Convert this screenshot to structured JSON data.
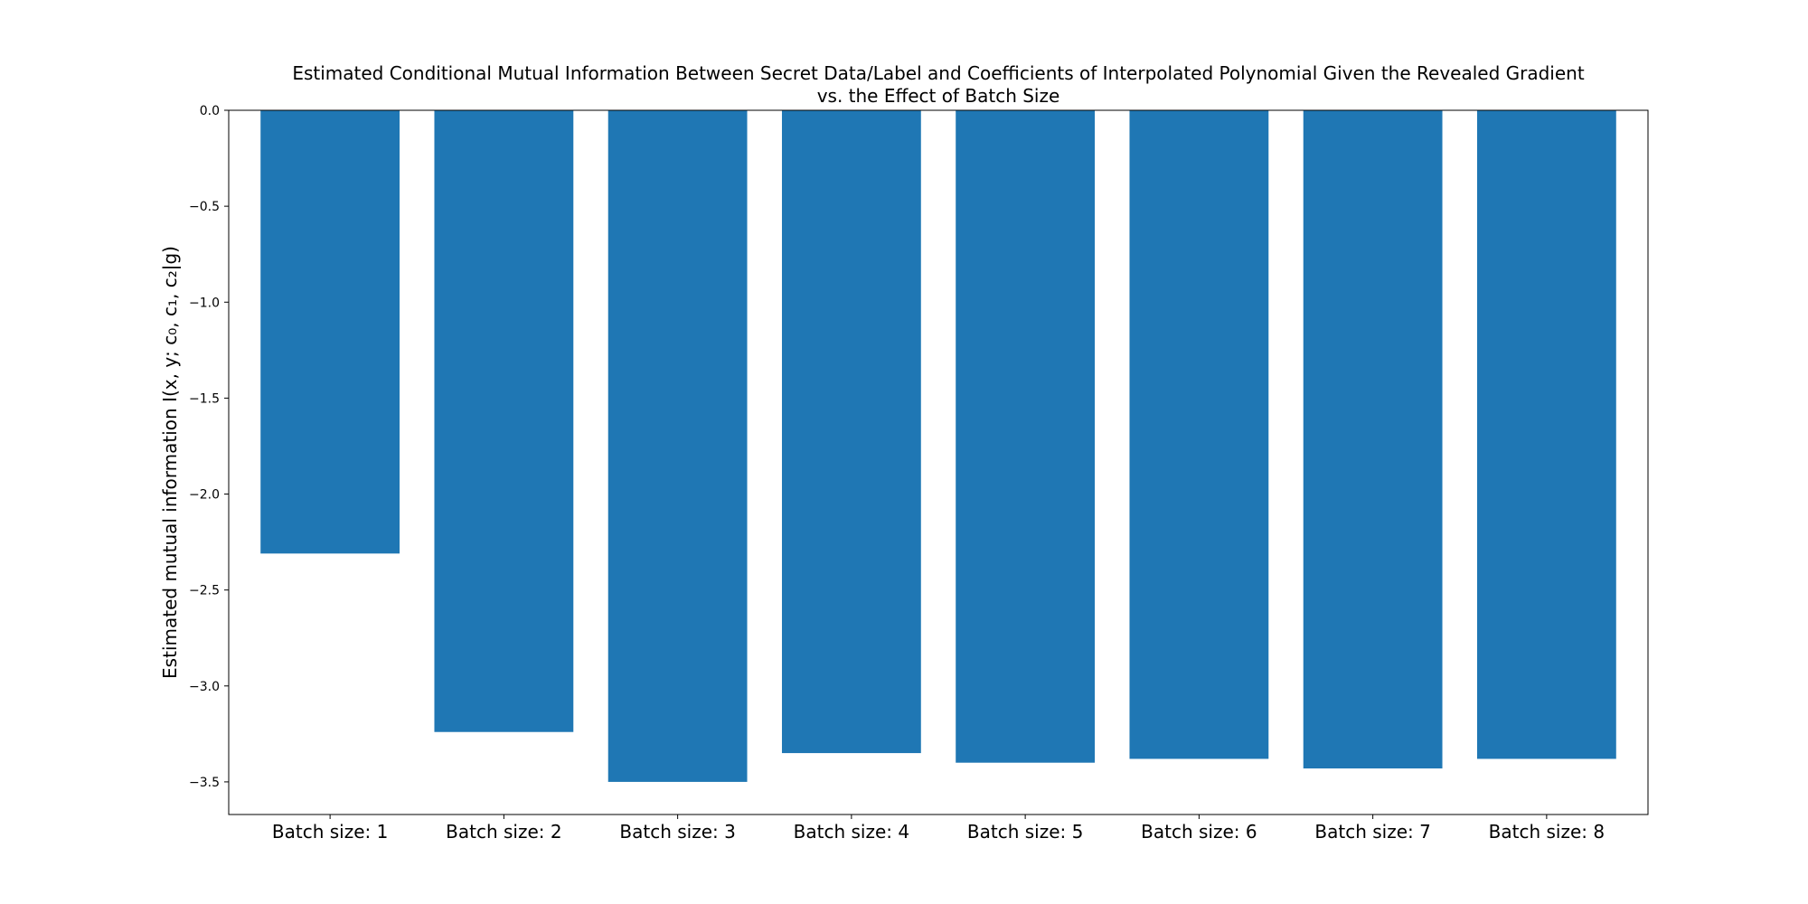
{
  "chart_data": {
    "type": "bar",
    "title_lines": [
      "Estimated Conditional Mutual Information Between Secret Data/Label and Coefficients of Interpolated Polynomial Given the Revealed Gradient",
      "vs. the Effect of Batch Size"
    ],
    "xlabel": "",
    "ylabel": "Estimated mutual information I(x, y; c₀, c₁, c₂|g)",
    "categories": [
      "Batch size: 1",
      "Batch size: 2",
      "Batch size: 3",
      "Batch size: 4",
      "Batch size: 5",
      "Batch size: 6",
      "Batch size: 7",
      "Batch size: 8"
    ],
    "values": [
      -2.31,
      -3.24,
      -3.5,
      -3.35,
      -3.4,
      -3.38,
      -3.43,
      -3.38
    ],
    "ylim": [
      -3.67,
      0.0
    ],
    "yticks": [
      0.0,
      -0.5,
      -1.0,
      -1.5,
      -2.0,
      -2.5,
      -3.0,
      -3.5
    ],
    "ytick_labels": [
      "0.0",
      "−0.5",
      "−1.0",
      "−1.5",
      "−2.0",
      "−2.5",
      "−3.0",
      "−3.5"
    ],
    "bar_color": "#1f77b4",
    "grid": false,
    "legend": "none"
  }
}
